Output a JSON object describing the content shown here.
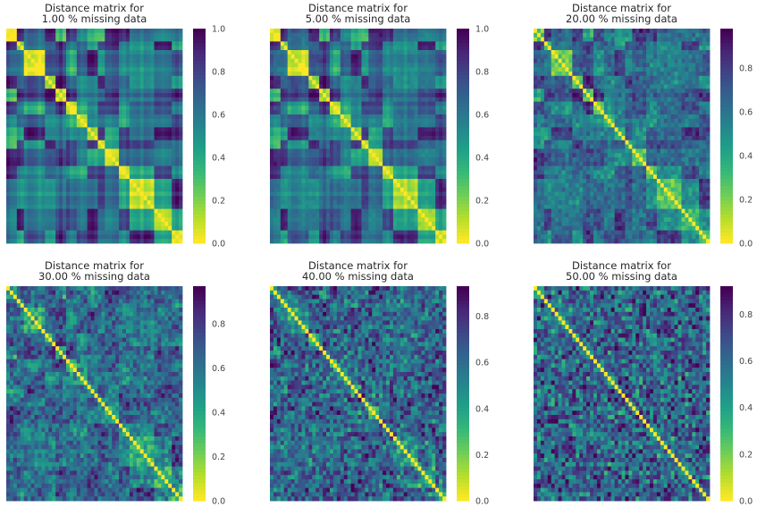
{
  "chart_data": [
    {
      "type": "heatmap",
      "title": "Distance matrix for\n1.00 % missing data",
      "missing_pct": 1.0,
      "colormap": "viridis_r",
      "vmin": 0.0,
      "vmax": 1.0,
      "colorbar_ticks": [
        "0.0",
        "0.2",
        "0.4",
        "0.6",
        "0.8",
        "1.0"
      ],
      "structure": "large uniform blocks, diagonal zero",
      "grid": false
    },
    {
      "type": "heatmap",
      "title": "Distance matrix for\n5.00 % missing data",
      "missing_pct": 5.0,
      "colormap": "viridis_r",
      "vmin": 0.0,
      "vmax": 1.0,
      "colorbar_ticks": [
        "0.0",
        "0.2",
        "0.4",
        "0.6",
        "0.8",
        "1.0"
      ],
      "structure": "blocks with slight noise, diagonal zero",
      "grid": false
    },
    {
      "type": "heatmap",
      "title": "Distance matrix for\n20.00 % missing data",
      "missing_pct": 20.0,
      "colormap": "viridis_r",
      "vmin": 0.0,
      "vmax": 0.98,
      "colorbar_ticks": [
        "0.0",
        "0.2",
        "0.4",
        "0.6",
        "0.8"
      ],
      "structure": "noisy blocks, diagonal zero",
      "grid": false
    },
    {
      "type": "heatmap",
      "title": "Distance matrix for\n30.00 % missing data",
      "missing_pct": 30.0,
      "colormap": "viridis_r",
      "vmin": 0.0,
      "vmax": 0.97,
      "colorbar_ticks": [
        "0.0",
        "0.2",
        "0.4",
        "0.6",
        "0.8"
      ],
      "structure": "noisy, faint blocks, diagonal zero",
      "grid": false
    },
    {
      "type": "heatmap",
      "title": "Distance matrix for\n40.00 % missing data",
      "missing_pct": 40.0,
      "colormap": "viridis_r",
      "vmin": 0.0,
      "vmax": 0.93,
      "colorbar_ticks": [
        "0.0",
        "0.2",
        "0.4",
        "0.6",
        "0.8"
      ],
      "structure": "mostly noise, diagonal zero",
      "grid": false
    },
    {
      "type": "heatmap",
      "title": "Distance matrix for\n50.00 % missing data",
      "missing_pct": 50.0,
      "colormap": "viridis_r",
      "vmin": 0.0,
      "vmax": 0.92,
      "colorbar_ticks": [
        "0.0",
        "0.2",
        "0.4",
        "0.6",
        "0.8"
      ],
      "structure": "mostly noise, diagonal zero",
      "grid": false
    }
  ]
}
